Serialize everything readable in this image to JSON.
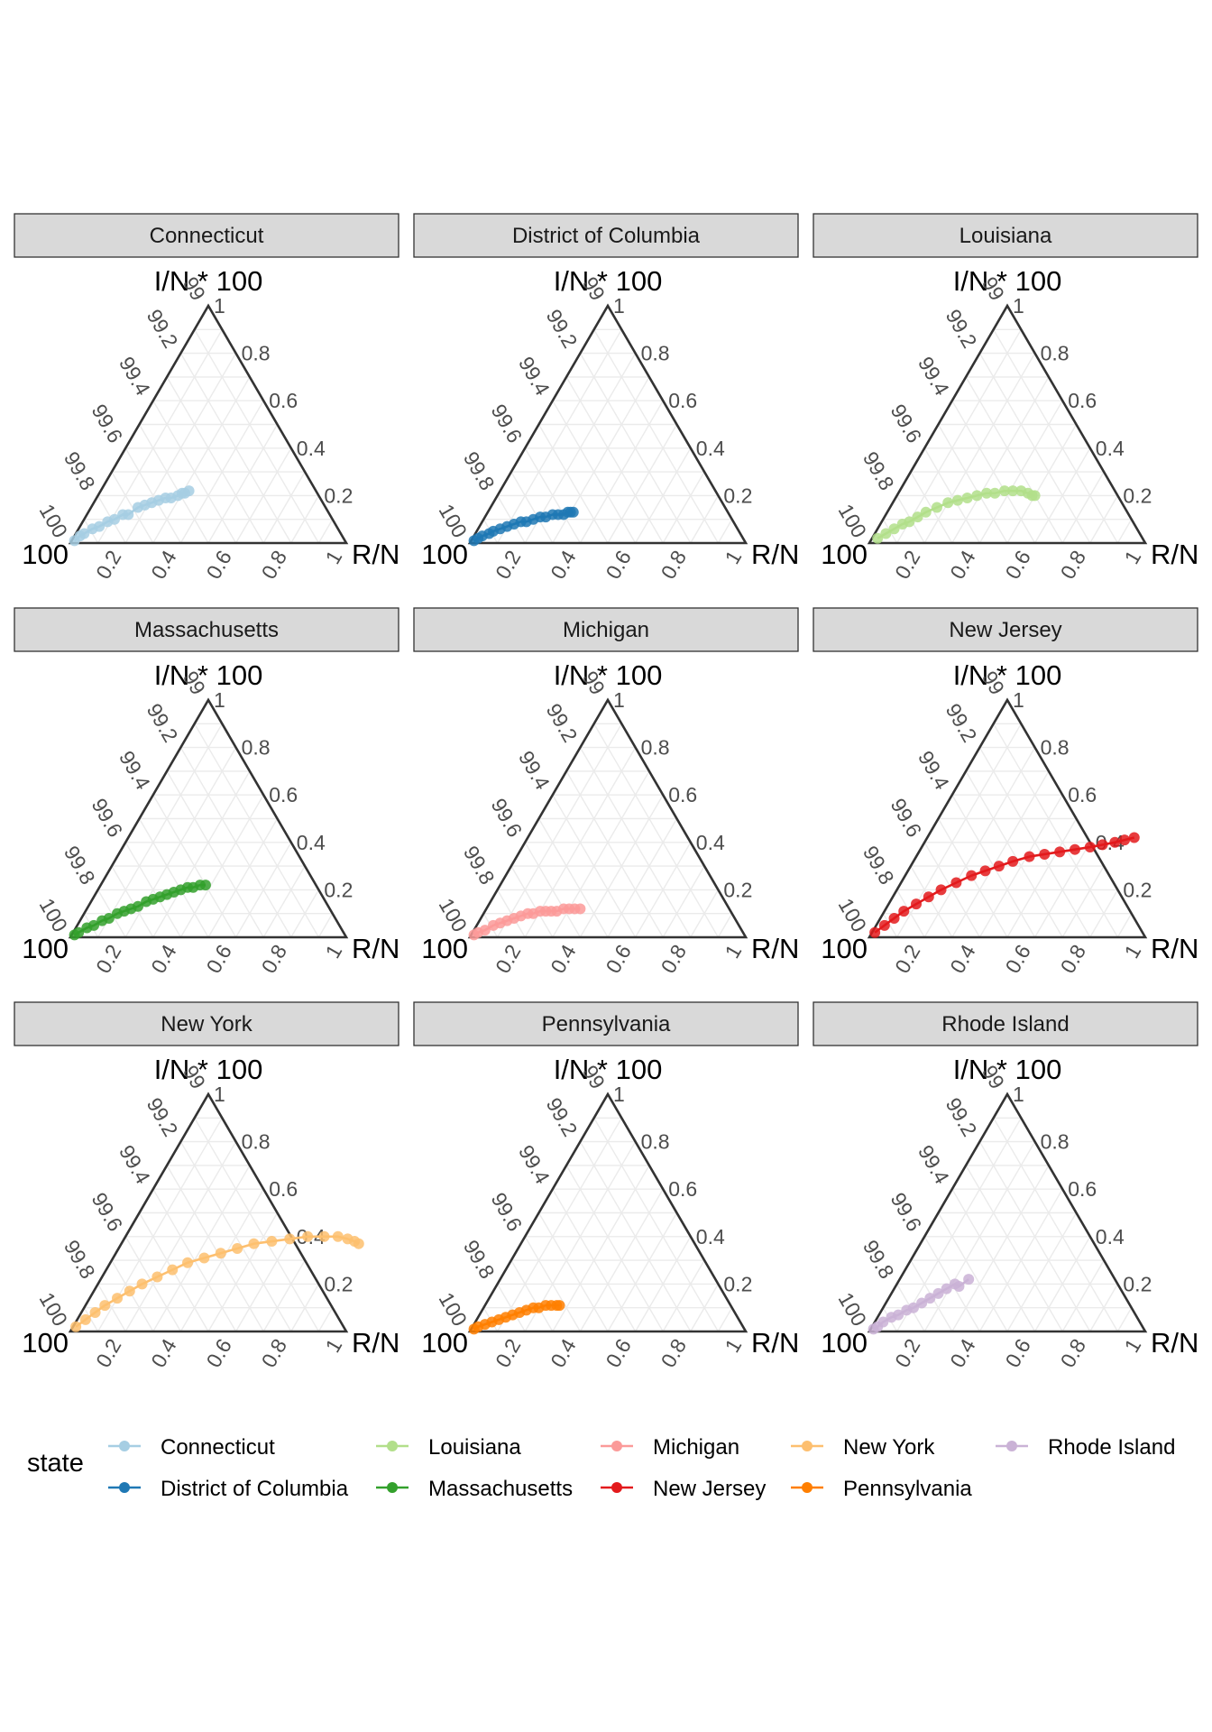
{
  "chart_data": {
    "type": "scatter",
    "subtype": "ternary-facets",
    "axis_titles": {
      "top": "I/N * 100",
      "left": "100",
      "right": "R/N"
    },
    "left_ticks": [
      "100",
      "99.8",
      "99.6",
      "99.4",
      "99.2",
      "99"
    ],
    "right_ticks": [
      "0.2",
      "0.4",
      "0.6",
      "0.8",
      "1"
    ],
    "bottom_ticks": [
      "0.2",
      "0.4",
      "0.6",
      "0.8",
      "1"
    ],
    "legend": {
      "title": "state",
      "position": "bottom"
    },
    "grid": true,
    "panels": [
      {
        "name": "Connecticut",
        "color": "#A6CEE3",
        "points": [
          [
            0.01,
            0.01
          ],
          [
            0.02,
            0.03
          ],
          [
            0.03,
            0.04
          ],
          [
            0.05,
            0.06
          ],
          [
            0.07,
            0.07
          ],
          [
            0.09,
            0.09
          ],
          [
            0.11,
            0.1
          ],
          [
            0.13,
            0.12
          ],
          [
            0.15,
            0.12
          ],
          [
            0.17,
            0.15
          ],
          [
            0.19,
            0.16
          ],
          [
            0.21,
            0.17
          ],
          [
            0.23,
            0.18
          ],
          [
            0.25,
            0.19
          ],
          [
            0.27,
            0.19
          ],
          [
            0.29,
            0.2
          ],
          [
            0.3,
            0.21
          ],
          [
            0.31,
            0.21
          ],
          [
            0.32,
            0.22
          ]
        ]
      },
      {
        "name": "District of Columbia",
        "color": "#1F78B4",
        "points": [
          [
            0.01,
            0.01
          ],
          [
            0.02,
            0.02
          ],
          [
            0.03,
            0.03
          ],
          [
            0.05,
            0.04
          ],
          [
            0.06,
            0.05
          ],
          [
            0.08,
            0.06
          ],
          [
            0.1,
            0.07
          ],
          [
            0.12,
            0.08
          ],
          [
            0.14,
            0.09
          ],
          [
            0.16,
            0.09
          ],
          [
            0.18,
            0.1
          ],
          [
            0.2,
            0.11
          ],
          [
            0.22,
            0.11
          ],
          [
            0.24,
            0.12
          ],
          [
            0.26,
            0.12
          ],
          [
            0.28,
            0.12
          ],
          [
            0.29,
            0.13
          ],
          [
            0.3,
            0.13
          ],
          [
            0.31,
            0.13
          ]
        ]
      },
      {
        "name": "Louisiana",
        "color": "#B2DF8A",
        "points": [
          [
            0.02,
            0.02
          ],
          [
            0.04,
            0.04
          ],
          [
            0.06,
            0.06
          ],
          [
            0.08,
            0.08
          ],
          [
            0.1,
            0.09
          ],
          [
            0.12,
            0.11
          ],
          [
            0.14,
            0.13
          ],
          [
            0.17,
            0.15
          ],
          [
            0.2,
            0.17
          ],
          [
            0.23,
            0.18
          ],
          [
            0.26,
            0.19
          ],
          [
            0.29,
            0.2
          ],
          [
            0.32,
            0.21
          ],
          [
            0.35,
            0.21
          ],
          [
            0.38,
            0.22
          ],
          [
            0.41,
            0.22
          ],
          [
            0.44,
            0.22
          ],
          [
            0.47,
            0.21
          ],
          [
            0.49,
            0.2
          ],
          [
            0.5,
            0.2
          ]
        ]
      },
      {
        "name": "Massachusetts",
        "color": "#33A02C",
        "points": [
          [
            0.01,
            0.01
          ],
          [
            0.02,
            0.02
          ],
          [
            0.04,
            0.04
          ],
          [
            0.06,
            0.05
          ],
          [
            0.08,
            0.07
          ],
          [
            0.1,
            0.08
          ],
          [
            0.12,
            0.1
          ],
          [
            0.14,
            0.11
          ],
          [
            0.16,
            0.12
          ],
          [
            0.18,
            0.13
          ],
          [
            0.2,
            0.15
          ],
          [
            0.22,
            0.16
          ],
          [
            0.24,
            0.17
          ],
          [
            0.26,
            0.18
          ],
          [
            0.28,
            0.19
          ],
          [
            0.3,
            0.2
          ],
          [
            0.32,
            0.21
          ],
          [
            0.34,
            0.21
          ],
          [
            0.36,
            0.22
          ],
          [
            0.38,
            0.22
          ]
        ]
      },
      {
        "name": "Michigan",
        "color": "#FB9A99",
        "points": [
          [
            0.01,
            0.01
          ],
          [
            0.02,
            0.02
          ],
          [
            0.04,
            0.03
          ],
          [
            0.06,
            0.05
          ],
          [
            0.08,
            0.06
          ],
          [
            0.1,
            0.07
          ],
          [
            0.12,
            0.08
          ],
          [
            0.14,
            0.09
          ],
          [
            0.16,
            0.1
          ],
          [
            0.18,
            0.1
          ],
          [
            0.2,
            0.11
          ],
          [
            0.22,
            0.11
          ],
          [
            0.24,
            0.11
          ],
          [
            0.26,
            0.11
          ],
          [
            0.28,
            0.12
          ],
          [
            0.3,
            0.12
          ],
          [
            0.32,
            0.12
          ],
          [
            0.34,
            0.12
          ]
        ]
      },
      {
        "name": "New Jersey",
        "color": "#E31A1C",
        "points": [
          [
            0.01,
            0.02
          ],
          [
            0.03,
            0.05
          ],
          [
            0.05,
            0.08
          ],
          [
            0.07,
            0.11
          ],
          [
            0.1,
            0.14
          ],
          [
            0.13,
            0.17
          ],
          [
            0.16,
            0.2
          ],
          [
            0.2,
            0.23
          ],
          [
            0.24,
            0.26
          ],
          [
            0.28,
            0.28
          ],
          [
            0.32,
            0.3
          ],
          [
            0.36,
            0.32
          ],
          [
            0.41,
            0.34
          ],
          [
            0.46,
            0.35
          ],
          [
            0.51,
            0.36
          ],
          [
            0.56,
            0.37
          ],
          [
            0.61,
            0.38
          ],
          [
            0.65,
            0.39
          ],
          [
            0.69,
            0.4
          ],
          [
            0.72,
            0.41
          ],
          [
            0.75,
            0.42
          ]
        ]
      },
      {
        "name": "New York",
        "color": "#FDBF6F",
        "points": [
          [
            0.01,
            0.02
          ],
          [
            0.03,
            0.05
          ],
          [
            0.05,
            0.08
          ],
          [
            0.07,
            0.11
          ],
          [
            0.1,
            0.14
          ],
          [
            0.13,
            0.17
          ],
          [
            0.16,
            0.2
          ],
          [
            0.2,
            0.23
          ],
          [
            0.24,
            0.26
          ],
          [
            0.28,
            0.29
          ],
          [
            0.33,
            0.31
          ],
          [
            0.38,
            0.33
          ],
          [
            0.43,
            0.35
          ],
          [
            0.48,
            0.37
          ],
          [
            0.54,
            0.38
          ],
          [
            0.6,
            0.39
          ],
          [
            0.66,
            0.4
          ],
          [
            0.72,
            0.4
          ],
          [
            0.77,
            0.4
          ],
          [
            0.81,
            0.39
          ],
          [
            0.84,
            0.38
          ],
          [
            0.86,
            0.37
          ]
        ]
      },
      {
        "name": "Pennsylvania",
        "color": "#FF7F00",
        "points": [
          [
            0.01,
            0.01
          ],
          [
            0.02,
            0.02
          ],
          [
            0.04,
            0.03
          ],
          [
            0.06,
            0.04
          ],
          [
            0.08,
            0.05
          ],
          [
            0.1,
            0.06
          ],
          [
            0.12,
            0.07
          ],
          [
            0.14,
            0.08
          ],
          [
            0.16,
            0.09
          ],
          [
            0.18,
            0.1
          ],
          [
            0.2,
            0.1
          ],
          [
            0.22,
            0.11
          ],
          [
            0.24,
            0.11
          ],
          [
            0.26,
            0.11
          ],
          [
            0.27,
            0.11
          ]
        ]
      },
      {
        "name": "Rhode Island",
        "color": "#CAB2D6",
        "points": [
          [
            0.01,
            0.01
          ],
          [
            0.02,
            0.02
          ],
          [
            0.03,
            0.04
          ],
          [
            0.05,
            0.06
          ],
          [
            0.07,
            0.07
          ],
          [
            0.09,
            0.09
          ],
          [
            0.11,
            0.1
          ],
          [
            0.13,
            0.12
          ],
          [
            0.15,
            0.14
          ],
          [
            0.17,
            0.16
          ],
          [
            0.19,
            0.18
          ],
          [
            0.21,
            0.2
          ],
          [
            0.23,
            0.19
          ],
          [
            0.25,
            0.22
          ]
        ]
      }
    ]
  }
}
